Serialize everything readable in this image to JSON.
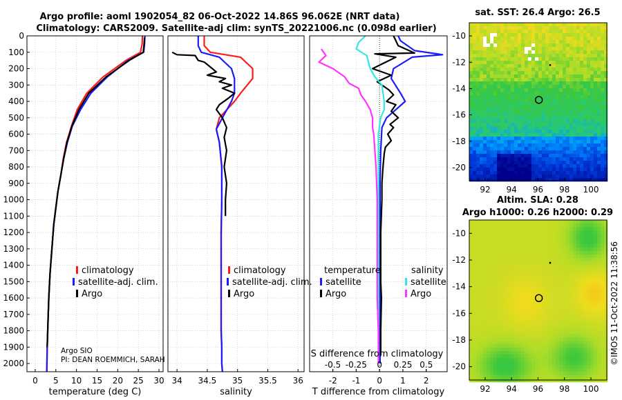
{
  "header": {
    "line1": "Argo profile: aoml 1902054_82 06-Oct-2022 14.86S 96.062E (NRT data)",
    "line2": "Climatology: CARS2009. Satellite-adj clim: synTS_20221006.nc (0.098d earlier)"
  },
  "colors": {
    "climatology": "#ff1a1a",
    "satellite": "#1a1aff",
    "argo": "#000000",
    "sal_satellite": "#33e6e6",
    "sal_argo": "#ff33ff"
  },
  "legends": {
    "temp": [
      "climatology",
      "satellite-adj. clim.",
      "Argo"
    ],
    "sal": [
      "climatology",
      "satellite-adj. clim.",
      "Argo"
    ],
    "diff_temp_title": "temperature",
    "diff_sal_title": "salinity",
    "diff_temp_items": [
      "satellite",
      "Argo"
    ],
    "diff_sal_items": [
      "satellite",
      "Argo"
    ]
  },
  "credits": {
    "line1": "Argo SIO",
    "line2": "PI: DEAN ROEMMICH, SARAH"
  },
  "timestamp": "©IMOS 11-Oct-2022 11:38:56",
  "map_top": {
    "title": "sat. SST: 26.4 Argo: 26.5",
    "xticks": [
      "92",
      "94",
      "96",
      "98",
      "100"
    ],
    "yticks": [
      "-10",
      "-12",
      "-14",
      "-16",
      "-18",
      "-20"
    ]
  },
  "map_bottom": {
    "title1": "Altim. SLA: 0.28",
    "title2": "Argo h1000: 0.26 h2000: 0.29",
    "xticks": [
      "92",
      "94",
      "96",
      "98",
      "100"
    ],
    "yticks": [
      "-10",
      "-12",
      "-14",
      "-16",
      "-18",
      "-20"
    ]
  },
  "chart_data": [
    {
      "type": "line",
      "title": "",
      "xlabel": "temperature (deg C)",
      "ylabel": "",
      "xlim": [
        -2,
        31
      ],
      "ylim": [
        2050,
        0
      ],
      "xticks": [
        0,
        5,
        10,
        15,
        20,
        25,
        30
      ],
      "yticks": [
        0,
        100,
        200,
        300,
        400,
        500,
        600,
        700,
        800,
        900,
        1000,
        1100,
        1200,
        1300,
        1400,
        1500,
        1600,
        1700,
        1800,
        1900,
        2000
      ],
      "legend": "center",
      "series": [
        {
          "name": "climatology",
          "x": [
            26.0,
            25.9,
            25.5,
            22.0,
            16.5,
            12.5,
            10.2,
            8.8,
            7.6,
            6.8,
            6.2,
            5.5,
            5.0,
            4.5,
            4.2,
            3.9,
            3.6,
            3.3,
            3.1,
            2.9,
            2.8
          ],
          "y": [
            0,
            50,
            100,
            150,
            250,
            350,
            450,
            550,
            650,
            750,
            850,
            950,
            1050,
            1150,
            1250,
            1350,
            1450,
            1600,
            1750,
            1900,
            2050
          ]
        },
        {
          "name": "satellite-adj. clim.",
          "x": [
            26.6,
            26.5,
            26.3,
            22.5,
            17.5,
            13.5,
            11.0,
            9.0,
            7.8,
            6.9,
            6.2,
            5.5,
            5.0,
            4.5,
            4.2,
            3.9,
            3.6,
            3.3,
            3.1,
            2.9,
            2.8
          ],
          "y": [
            0,
            50,
            100,
            150,
            250,
            350,
            450,
            550,
            650,
            750,
            850,
            950,
            1050,
            1150,
            1250,
            1350,
            1450,
            1600,
            1750,
            1900,
            2050
          ]
        },
        {
          "name": "Argo",
          "x": [
            26.5,
            26.4,
            26.2,
            22.8,
            17.2,
            13.0,
            10.6,
            8.9,
            7.7,
            6.9,
            6.2,
            5.5,
            5.0,
            4.5,
            4.2,
            3.9,
            3.6,
            3.3,
            3.1,
            2.9
          ],
          "y": [
            10,
            50,
            100,
            150,
            250,
            350,
            450,
            550,
            650,
            750,
            850,
            950,
            1050,
            1150,
            1250,
            1350,
            1450,
            1600,
            1750,
            1900
          ]
        }
      ]
    },
    {
      "type": "line",
      "title": "",
      "xlabel": "salinity",
      "ylabel": "",
      "xlim": [
        33.85,
        36.1
      ],
      "ylim": [
        2050,
        0
      ],
      "xticks": [
        34,
        34.5,
        35,
        35.5,
        36
      ],
      "legend": "center",
      "series": [
        {
          "name": "climatology",
          "x": [
            34.45,
            34.45,
            34.55,
            35.05,
            35.25,
            35.25,
            35.05,
            34.95,
            34.7,
            34.65,
            34.7,
            34.74,
            34.74,
            34.73,
            34.73,
            34.73,
            34.73,
            34.74,
            34.74,
            34.75
          ],
          "y": [
            0,
            60,
            100,
            130,
            200,
            260,
            350,
            400,
            500,
            570,
            650,
            800,
            1000,
            1200,
            1400,
            1600,
            1800,
            1900,
            2000,
            2050
          ]
        },
        {
          "name": "satellite-adj. clim.",
          "x": [
            34.35,
            34.35,
            34.4,
            34.7,
            34.9,
            34.95,
            34.95,
            34.9,
            34.75,
            34.65,
            34.7,
            34.74,
            34.74,
            34.73,
            34.73,
            34.73,
            34.73,
            34.74,
            34.74,
            34.75
          ],
          "y": [
            0,
            60,
            100,
            130,
            200,
            260,
            350,
            400,
            500,
            570,
            650,
            800,
            1000,
            1200,
            1400,
            1600,
            1800,
            1900,
            2000,
            2050
          ]
        },
        {
          "name": "Argo",
          "x": [
            33.92,
            34.0,
            34.3,
            34.35,
            34.45,
            34.55,
            34.65,
            34.5,
            34.8,
            34.7,
            34.9,
            34.75,
            34.95,
            34.85,
            34.7,
            34.65,
            34.75,
            34.82,
            34.78,
            34.82,
            34.78,
            34.82,
            34.8,
            34.8
          ],
          "y": [
            100,
            115,
            120,
            150,
            160,
            190,
            220,
            240,
            260,
            280,
            300,
            320,
            350,
            380,
            420,
            450,
            500,
            560,
            620,
            700,
            800,
            900,
            1000,
            1100
          ]
        }
      ]
    },
    {
      "type": "line",
      "title": "",
      "xlabel": "T difference from climatology",
      "ylabel": "",
      "xlim": [
        -3.0,
        2.9
      ],
      "ylim": [
        2050,
        0
      ],
      "xticks_T": [
        -2,
        -1,
        0,
        1,
        2
      ],
      "xlabel_S": "S difference from climatology",
      "xticks_S": [
        -0.5,
        -0.25,
        0,
        0.25,
        0.5
      ],
      "legend": "center",
      "series": [
        {
          "name": "temperature satellite",
          "x": [
            0.8,
            0.9,
            1.5,
            2.7,
            1.4,
            0.6,
            0.5,
            0.9,
            1.1,
            0.7,
            0.3,
            0.1,
            0.05,
            0.02,
            0.02,
            0.02,
            0.02,
            0.02,
            0.02,
            0.02
          ],
          "y": [
            0,
            30,
            90,
            115,
            130,
            200,
            260,
            350,
            400,
            450,
            500,
            560,
            700,
            900,
            1100,
            1300,
            1500,
            1700,
            1900,
            2000
          ]
        },
        {
          "name": "temperature Argo",
          "x": [
            0.6,
            0.8,
            1.5,
            -0.2,
            0.7,
            -0.3,
            0.5,
            -0.1,
            0.4,
            0.6,
            0.3,
            0.7,
            0.5,
            0.8,
            0.45,
            0.6,
            0.35,
            0.5,
            0.25,
            0.2,
            0.15,
            0.1,
            0.1,
            0.05,
            0.05,
            0.05,
            0.08,
            0.05,
            0.05
          ],
          "y": [
            0,
            60,
            105,
            110,
            130,
            200,
            240,
            280,
            330,
            360,
            400,
            420,
            460,
            500,
            540,
            560,
            600,
            640,
            680,
            720,
            800,
            900,
            1000,
            1200,
            1400,
            1500,
            1600,
            1800,
            1950
          ]
        },
        {
          "name": "salinity satellite",
          "x": [
            -0.6,
            -0.9,
            -1.0,
            -0.55,
            -0.4,
            -0.2,
            0.1,
            0.2,
            0.2,
            0.05,
            -0.05,
            -0.05,
            -0.05,
            -0.05,
            -0.05,
            -0.05,
            -0.05,
            -0.05
          ],
          "y": [
            0,
            40,
            80,
            120,
            200,
            250,
            300,
            400,
            450,
            500,
            600,
            700,
            900,
            1100,
            1300,
            1500,
            1700,
            1950
          ]
        },
        {
          "name": "salinity Argo",
          "x": [
            -2.5,
            -2.3,
            -2.6,
            -2.0,
            -1.5,
            -1.3,
            -0.9,
            -0.8,
            -0.6,
            -0.4,
            -0.3,
            -0.3,
            -0.25,
            -0.2,
            -0.15,
            -0.1,
            -0.1,
            -0.1,
            -0.1,
            -0.05,
            -0.05
          ],
          "y": [
            80,
            120,
            160,
            200,
            250,
            290,
            320,
            360,
            400,
            450,
            500,
            560,
            600,
            700,
            800,
            1000,
            1200,
            1400,
            1600,
            1800,
            2000
          ]
        }
      ]
    }
  ]
}
